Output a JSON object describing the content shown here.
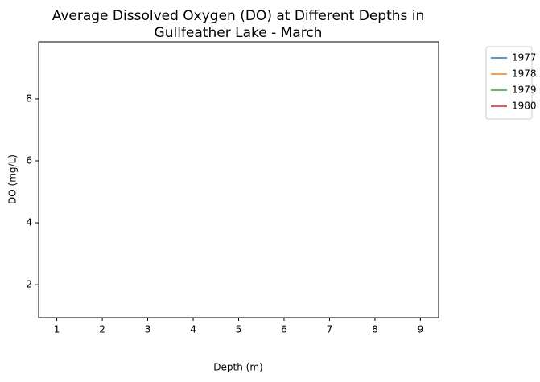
{
  "chart_data": {
    "type": "line",
    "title": [
      "Average Dissolved Oxygen (DO) at Different Depths in",
      "Gullfeather Lake - March"
    ],
    "x_label": "Depth (m)",
    "y_label": "DO (mg/L)",
    "x": [
      1,
      2,
      3,
      4,
      5,
      6,
      7,
      8,
      9
    ],
    "series": [
      {
        "name": "1977",
        "color": "#1f77b4",
        "values": [
          null,
          null,
          null,
          null,
          null,
          null,
          null,
          null,
          null
        ]
      },
      {
        "name": "1978",
        "color": "#ff7f0e",
        "values": [
          null,
          null,
          null,
          null,
          null,
          null,
          null,
          null,
          null
        ]
      },
      {
        "name": "1979",
        "color": "#2ca02c",
        "values": [
          null,
          null,
          null,
          null,
          null,
          null,
          null,
          null,
          null
        ]
      },
      {
        "name": "1980",
        "color": "#d62728",
        "values": [
          null,
          null,
          null,
          null,
          null,
          null,
          null,
          null,
          null
        ]
      }
    ],
    "xlim": [
      0.6,
      9.4
    ],
    "xticks": [
      1,
      2,
      3,
      4,
      5,
      6,
      7,
      8,
      9
    ],
    "ylim": [
      0.94,
      9.84
    ],
    "yticks": [
      2,
      4,
      6,
      8
    ],
    "legend": "outside-upper-right"
  }
}
